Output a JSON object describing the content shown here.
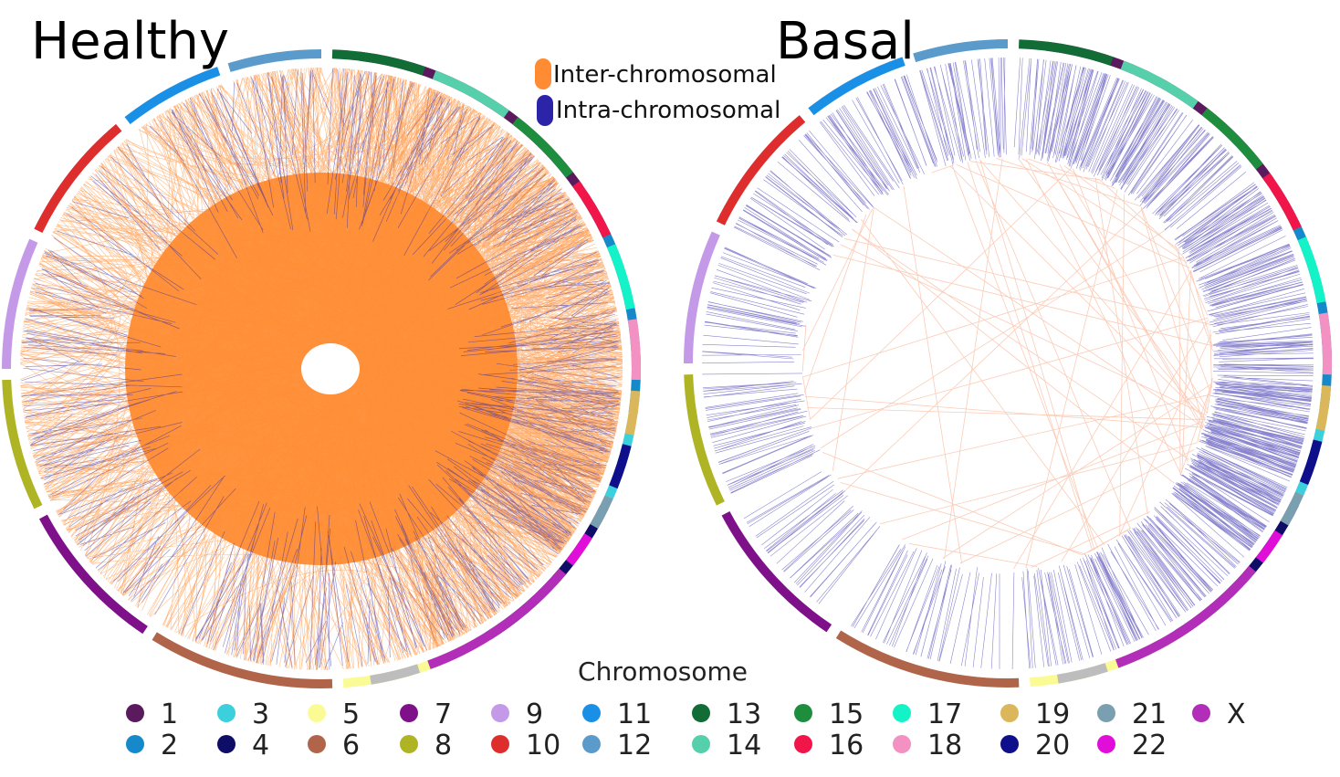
{
  "panels": [
    {
      "title": "Healthy"
    },
    {
      "title": "Basal"
    }
  ],
  "link_legend": [
    {
      "label": "Inter-chromosomal",
      "color": "#FF8C33"
    },
    {
      "label": "Intra-chromosomal",
      "color": "#2B23A8"
    }
  ],
  "chromosome_legend": {
    "title": "Chromosome",
    "items": [
      {
        "label": "1",
        "color": "#5B1A5E"
      },
      {
        "label": "2",
        "color": "#1589C9"
      },
      {
        "label": "3",
        "color": "#3CCFDC"
      },
      {
        "label": "4",
        "color": "#0E0E66"
      },
      {
        "label": "5",
        "color": "#FBFB96"
      },
      {
        "label": "6",
        "color": "#B0654A"
      },
      {
        "label": "7",
        "color": "#7E108A"
      },
      {
        "label": "8",
        "color": "#AFB425"
      },
      {
        "label": "9",
        "color": "#C49AE8"
      },
      {
        "label": "10",
        "color": "#DD2D2D"
      },
      {
        "label": "11",
        "color": "#1A8FE6"
      },
      {
        "label": "12",
        "color": "#5B9BCB"
      },
      {
        "label": "13",
        "color": "#126C35"
      },
      {
        "label": "14",
        "color": "#56D0AA"
      },
      {
        "label": "15",
        "color": "#1E8E3E"
      },
      {
        "label": "16",
        "color": "#F0164A"
      },
      {
        "label": "17",
        "color": "#14F2C8"
      },
      {
        "label": "18",
        "color": "#F291C2"
      },
      {
        "label": "19",
        "color": "#DBB75B"
      },
      {
        "label": "20",
        "color": "#0F0F8C"
      },
      {
        "label": "21",
        "color": "#7A9FB0"
      },
      {
        "label": "22",
        "color": "#E00ED8"
      },
      {
        "label": "X",
        "color": "#B22EB8"
      }
    ]
  },
  "ring": {
    "segments": [
      {
        "id": "1",
        "color": "#5B1A5E"
      },
      {
        "id": "2",
        "color": "#1589C9"
      },
      {
        "id": "3",
        "color": "#3CCFDC"
      },
      {
        "id": "4",
        "color": "#0E0E66"
      },
      {
        "id": "5",
        "color": "#FBFB96"
      },
      {
        "id": "6",
        "color": "#B0654A"
      },
      {
        "id": "7",
        "color": "#7E108A"
      },
      {
        "id": "8",
        "color": "#AFB425"
      },
      {
        "id": "9",
        "color": "#C49AE8"
      },
      {
        "id": "10",
        "color": "#DD2D2D"
      },
      {
        "id": "11",
        "color": "#1A8FE6"
      },
      {
        "id": "12",
        "color": "#5B9BCB"
      },
      {
        "id": "13",
        "color": "#126C35"
      },
      {
        "id": "14",
        "color": "#56D0AA"
      },
      {
        "id": "15",
        "color": "#1E8E3E"
      },
      {
        "id": "16",
        "color": "#F0164A"
      },
      {
        "id": "17",
        "color": "#14F2C8"
      },
      {
        "id": "18",
        "color": "#F291C2"
      },
      {
        "id": "19",
        "color": "#DBB75B"
      },
      {
        "id": "20",
        "color": "#0F0F8C"
      },
      {
        "id": "21",
        "color": "#7A9FB0"
      },
      {
        "id": "22",
        "color": "#E00ED8"
      },
      {
        "id": "X",
        "color": "#B22EB8"
      },
      {
        "id": "Y",
        "color": "#BDBDBD"
      }
    ]
  },
  "colors": {
    "inter_healthy": "#FF8C33",
    "inter_basal": "#F7A07A",
    "intra": "#2B23A8"
  }
}
